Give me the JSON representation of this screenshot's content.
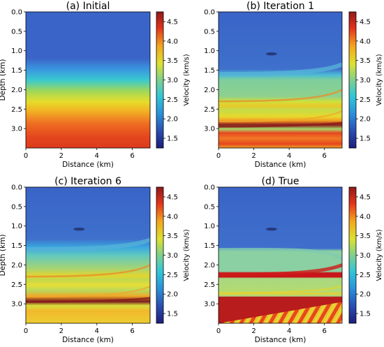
{
  "chart_data": [
    {
      "type": "heatmap",
      "title": "(a) Initial",
      "xlabel": "Distance (km)",
      "ylabel": "Depth (km)",
      "colorbar_label": "Velocity (km/s)",
      "xlim": [
        0,
        7
      ],
      "ylim": [
        0,
        3.5
      ],
      "xticks": [
        "0",
        "2",
        "4",
        "6"
      ],
      "yticks": [
        "0.0",
        "0.5",
        "1.0",
        "1.5",
        "2.0",
        "2.5",
        "3.0"
      ],
      "cbar_ticks": [
        "1.5",
        "2.0",
        "2.5",
        "3.0",
        "3.5",
        "4.0",
        "4.5"
      ],
      "clim": [
        1.25,
        4.75
      ],
      "depth_velocity_profile": [
        [
          0,
          1.5
        ],
        [
          1.3,
          1.5
        ],
        [
          1.6,
          1.9
        ],
        [
          1.9,
          2.6
        ],
        [
          2.25,
          3.3
        ],
        [
          2.55,
          3.7
        ],
        [
          2.9,
          4.0
        ],
        [
          3.5,
          4.25
        ]
      ]
    },
    {
      "type": "heatmap",
      "title": "(b) Iteration 1",
      "xlabel": "Distance (km)",
      "ylabel": "",
      "colorbar_label": "Velocity (km/s)",
      "xlim": [
        0,
        7
      ],
      "ylim": [
        0,
        3.5
      ],
      "xticks": [
        "0",
        "2",
        "4",
        "6"
      ],
      "yticks": [
        "0.0",
        "0.5",
        "1.0",
        "1.5",
        "2.0",
        "2.5",
        "3.0"
      ],
      "cbar_ticks": [
        "1.5",
        "2.0",
        "2.5",
        "3.0",
        "3.5",
        "4.0",
        "4.5"
      ],
      "clim": [
        1.25,
        4.75
      ],
      "depth_velocity_profile": [
        [
          0,
          1.5
        ],
        [
          1.6,
          1.6
        ],
        [
          1.9,
          3.0
        ],
        [
          2.3,
          3.3
        ],
        [
          2.45,
          3.8
        ],
        [
          2.8,
          4.2
        ],
        [
          2.95,
          3.4
        ],
        [
          3.1,
          4.4
        ],
        [
          3.5,
          4.2
        ]
      ]
    },
    {
      "type": "heatmap",
      "title": "(c) Iteration 6",
      "xlabel": "Distance (km)",
      "ylabel": "Depth (km)",
      "colorbar_label": "Velocity (km/s)",
      "xlim": [
        0,
        7
      ],
      "ylim": [
        0,
        3.5
      ],
      "xticks": [
        "0",
        "2",
        "4",
        "6"
      ],
      "yticks": [
        "0.0",
        "0.5",
        "1.0",
        "1.5",
        "2.0",
        "2.5",
        "3.0"
      ],
      "cbar_ticks": [
        "1.5",
        "2.0",
        "2.5",
        "3.0",
        "3.5",
        "4.0",
        "4.5"
      ],
      "clim": [
        1.25,
        4.75
      ],
      "depth_velocity_profile": [
        [
          0,
          1.5
        ],
        [
          1.5,
          1.6
        ],
        [
          1.8,
          2.2
        ],
        [
          2.1,
          3.0
        ],
        [
          2.3,
          3.6
        ],
        [
          2.5,
          3.2
        ],
        [
          2.8,
          4.0
        ],
        [
          3.0,
          3.4
        ],
        [
          3.5,
          3.8
        ]
      ]
    },
    {
      "type": "heatmap",
      "title": "(d) True",
      "xlabel": "Distance (km)",
      "ylabel": "",
      "colorbar_label": "Velocity (km/s)",
      "xlim": [
        0,
        7
      ],
      "ylim": [
        0,
        3.5
      ],
      "xticks": [
        "0",
        "2",
        "4",
        "6"
      ],
      "yticks": [
        "0.0",
        "0.5",
        "1.0",
        "1.5",
        "2.0",
        "2.5",
        "3.0"
      ],
      "cbar_ticks": [
        "1.5",
        "2.0",
        "2.5",
        "3.0",
        "3.5",
        "4.0",
        "4.5"
      ],
      "clim": [
        1.25,
        4.75
      ],
      "depth_velocity_profile": [
        [
          0,
          1.5
        ],
        [
          1.6,
          1.6
        ],
        [
          1.85,
          3.0
        ],
        [
          2.2,
          4.7
        ],
        [
          2.3,
          3.0
        ],
        [
          2.7,
          3.4
        ],
        [
          2.85,
          4.7
        ],
        [
          3.5,
          4.0
        ]
      ]
    }
  ]
}
